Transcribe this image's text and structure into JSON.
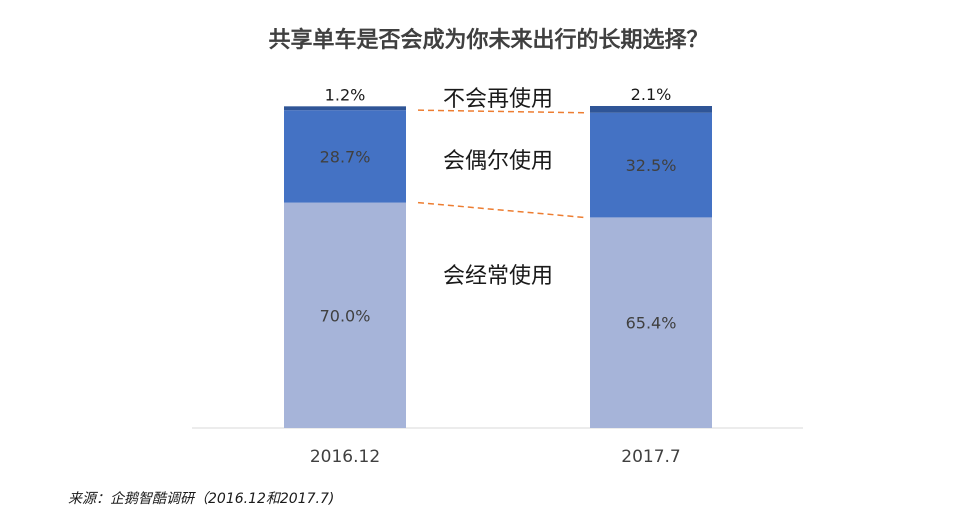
{
  "chart_data": {
    "type": "bar",
    "stacked": true,
    "title": "共享单车是否会成为你未来出行的长期选择？",
    "categories": [
      "2016.12",
      "2017.7"
    ],
    "series": [
      {
        "name": "会经常使用",
        "values": [
          70.0,
          65.4
        ],
        "labels": [
          "70.0%",
          "65.4%"
        ],
        "color": "#a6b4d9"
      },
      {
        "name": "会偶尔使用",
        "values": [
          28.7,
          32.5
        ],
        "labels": [
          "28.7%",
          "32.5%"
        ],
        "color": "#4472c4"
      },
      {
        "name": "不会再使用",
        "values": [
          1.2,
          2.1
        ],
        "labels": [
          "1.2%",
          "2.1%"
        ],
        "color": "#2f5597"
      }
    ],
    "ylim": [
      0,
      100
    ],
    "connector_color": "#ed7d31",
    "legend_placement": "between bars"
  },
  "source_note": "来源：企鹅智酷调研（2016.12和2017.7)"
}
